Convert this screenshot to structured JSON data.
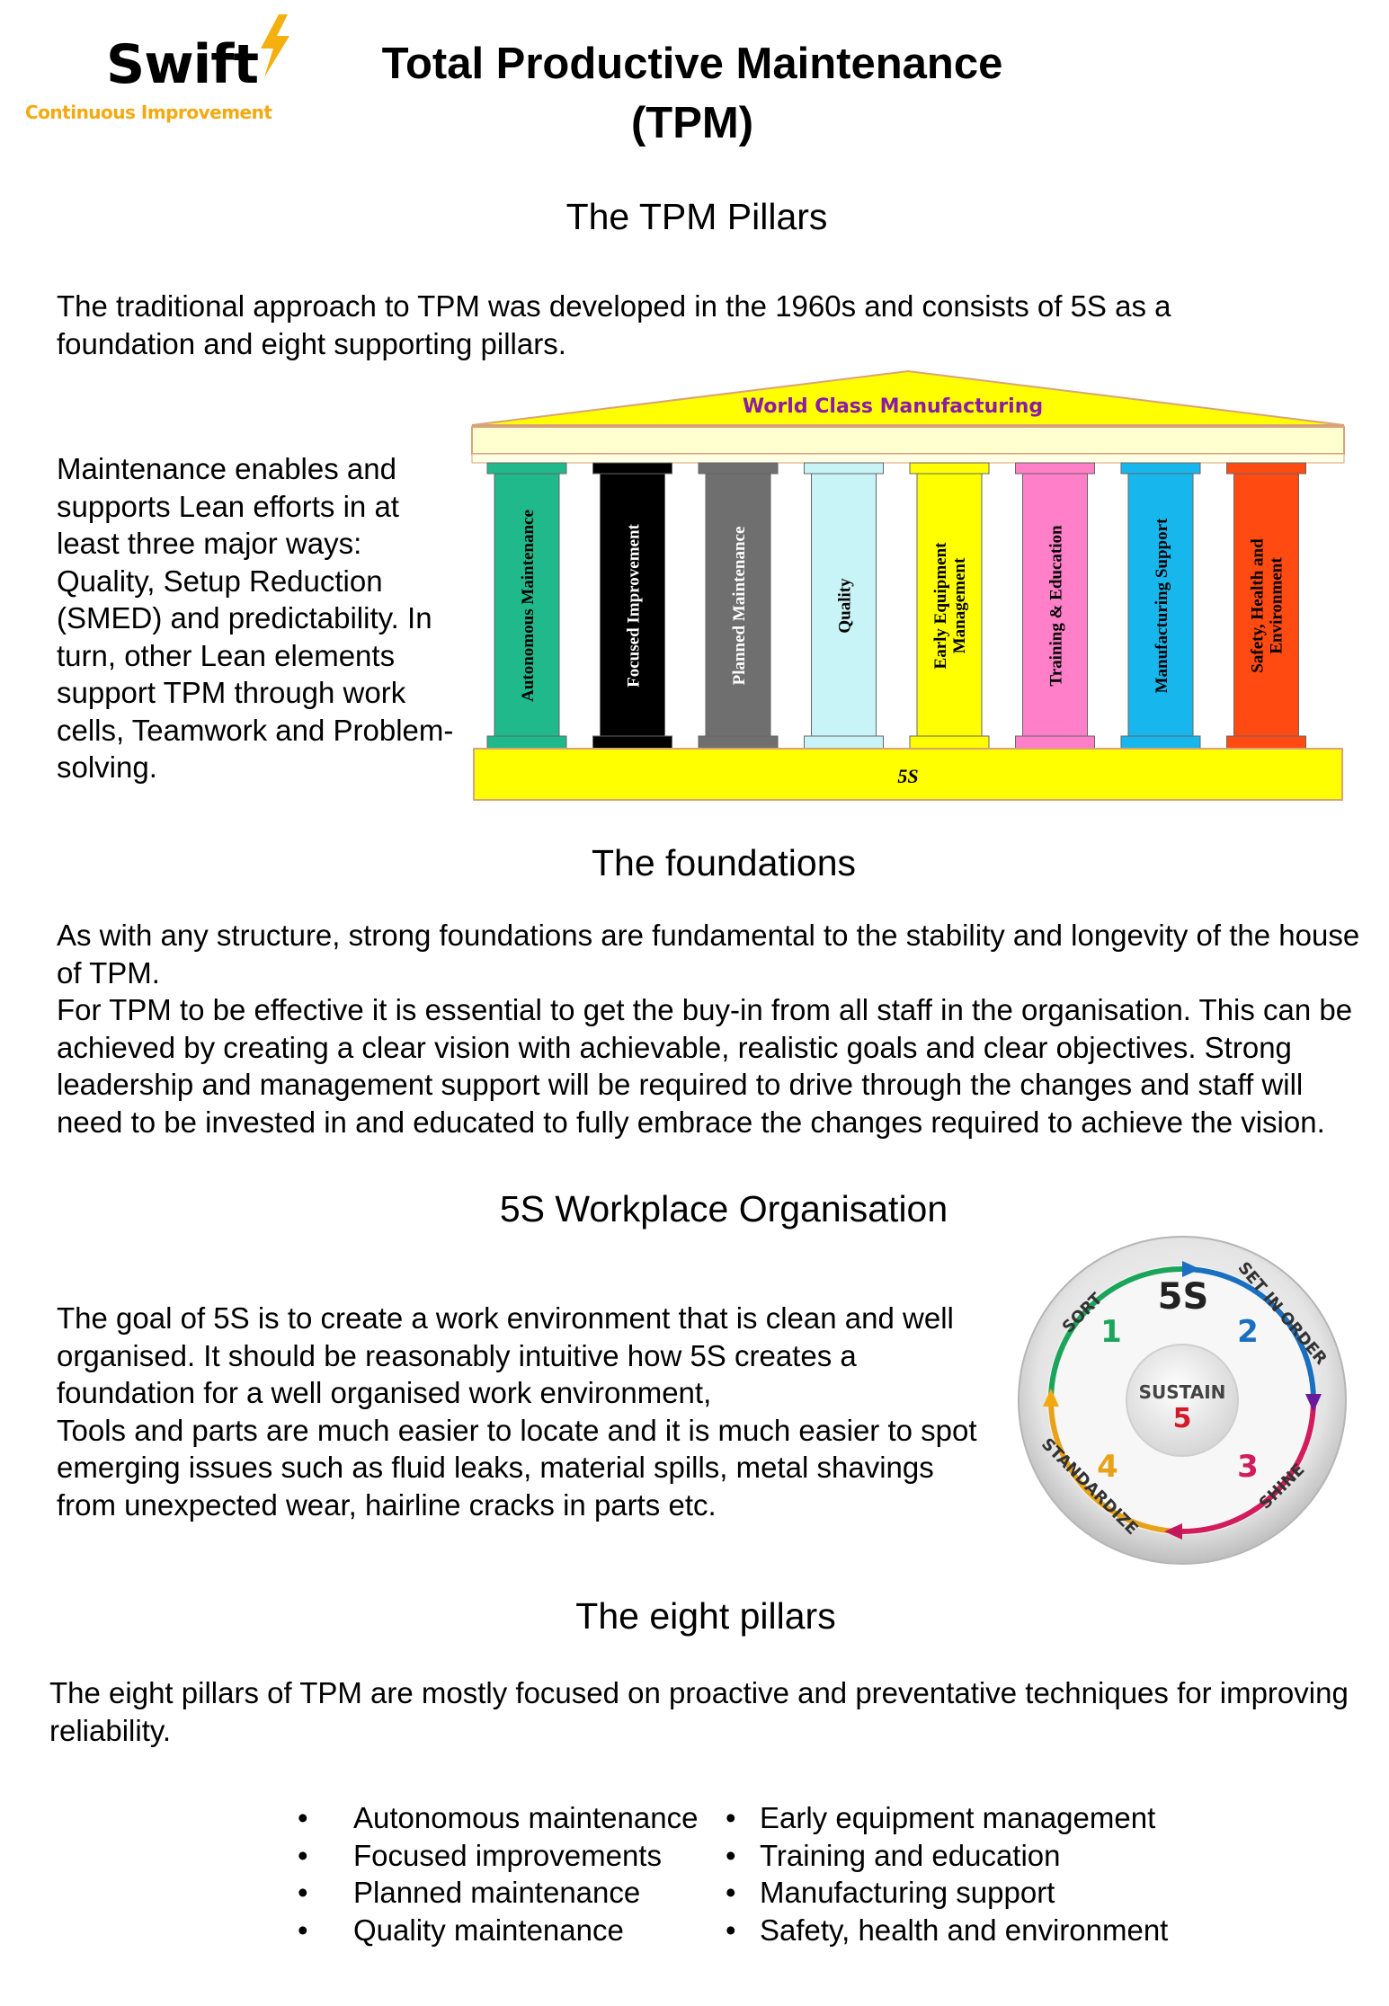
{
  "logo": {
    "word": "Swift",
    "tagline": "Continuous Improvement"
  },
  "title_line1": "Total Productive Maintenance",
  "title_line2": "(TPM)",
  "pillars_section": {
    "heading": "The TPM Pillars",
    "intro": "The traditional approach to TPM was developed in the 1960s and consists of 5S as a foundation and eight supporting pillars.",
    "side_text": "Maintenance enables and supports Lean efforts in at least three major ways: Quality, Setup Reduction (SMED) and predictability. In turn, other Lean elements support TPM through work cells, Teamwork and Problem-solving."
  },
  "diagram": {
    "roof_label": "World Class Manufacturing",
    "base_label": "5S",
    "pillars": [
      {
        "line1": "Autonomous Maintenance",
        "line2": "",
        "color": "#1fb98c",
        "text": "#000000"
      },
      {
        "line1": "Focused Improvement",
        "line2": "",
        "color": "#000000",
        "text": "#ffffff"
      },
      {
        "line1": "Planned Maintenance",
        "line2": "",
        "color": "#6f6f6f",
        "text": "#ffffff"
      },
      {
        "line1": "Quality",
        "line2": "",
        "color": "#c8f4f8",
        "text": "#000000"
      },
      {
        "line1": "Early Equipment",
        "line2": "Management",
        "color": "#ffff00",
        "text": "#000000"
      },
      {
        "line1": "Training & Education",
        "line2": "",
        "color": "#ff7fc8",
        "text": "#000000"
      },
      {
        "line1": "Manufacturing Support",
        "line2": "",
        "color": "#17b7ee",
        "text": "#000000"
      },
      {
        "line1": "Safety, Health and",
        "line2": "Environment",
        "color": "#ff4a12",
        "text": "#000000"
      }
    ]
  },
  "foundations": {
    "heading": "The foundations",
    "text": "As with any structure, strong foundations are fundamental to the stability and longevity of the house of TPM.",
    "text2": "For TPM to be effective it is essential to get the buy-in from all staff in the organisation. This can be achieved by creating a clear vision with achievable, realistic goals and clear objectives. Strong leadership and management support will be required to drive through the changes and staff will need to be invested in and educated to fully embrace the changes required to achieve the vision."
  },
  "five_s": {
    "heading": "5S Workplace Organisation",
    "text": "The goal of 5S is to create a work environment that is clean and well organised. It should be reasonably intuitive how 5S creates a foundation for a well organised work environment,",
    "text2": "Tools and parts are much easier to locate and it is much easier to spot emerging issues such as fluid leaks, material spills, metal shavings from unexpected wear, hairline cracks in parts etc.",
    "wheel": {
      "center_label": "5S",
      "hub_label": "SUSTAIN",
      "hub_number": "5",
      "steps": [
        {
          "label": "SORT",
          "number": "1",
          "color": "#1aa55a"
        },
        {
          "label": "SET IN ORDER",
          "number": "2",
          "color": "#1b6fc0"
        },
        {
          "label": "SHINE",
          "number": "3",
          "color": "#d21c5b"
        },
        {
          "label": "STANDARDIZE",
          "number": "4",
          "color": "#e8a21a"
        }
      ]
    }
  },
  "eight_pillars": {
    "heading": "The eight pillars",
    "text": "The eight pillars of TPM are mostly focused on proactive and preventative techniques for improving reliability.",
    "bullet_char": "•",
    "left_list": [
      "Autonomous maintenance",
      "Focused improvements",
      "Planned maintenance",
      "Quality maintenance"
    ],
    "right_list": [
      "Early equipment management",
      "Training and education",
      "Manufacturing support",
      "Safety, health and environment"
    ]
  }
}
